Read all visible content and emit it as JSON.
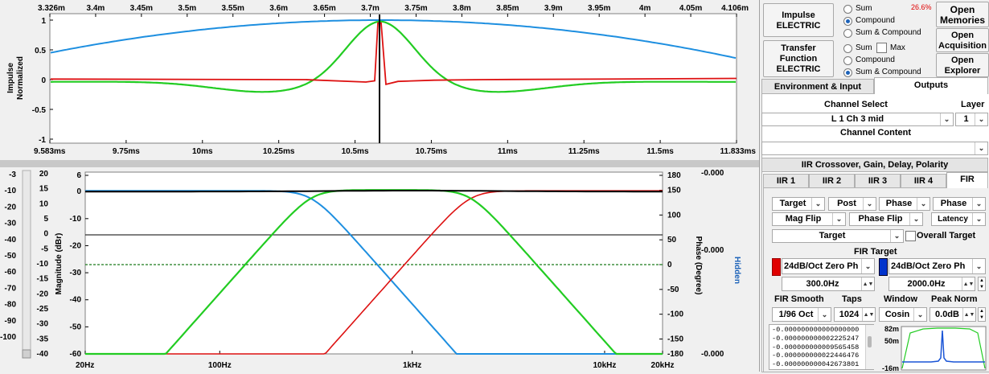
{
  "impulse": {
    "x_top_ticks": [
      "3.326m",
      "3.4m",
      "3.45m",
      "3.5m",
      "3.55m",
      "3.6m",
      "3.65m",
      "3.7m",
      "3.75m",
      "3.8m",
      "3.85m",
      "3.9m",
      "3.95m",
      "4m",
      "4.05m",
      "4.106m"
    ],
    "x_bottom_ticks": [
      "9.583ms",
      "9.75ms",
      "10ms",
      "10.25ms",
      "10.5ms",
      "10.75ms",
      "11ms",
      "11.25ms",
      "11.5ms",
      "11.833ms"
    ],
    "y_ticks": [
      "1",
      "0.5",
      "0",
      "-0.5",
      "-1"
    ],
    "ylabel_line1": "Impulse",
    "ylabel_line2": "Normalized"
  },
  "freq": {
    "left_scale_ticks": [
      "-3",
      "-10",
      "-20",
      "-30",
      "-40",
      "-50",
      "-60",
      "-70",
      "-80",
      "-90",
      "-100"
    ],
    "db2_ticks": [
      "20",
      "15",
      "10",
      "5",
      "0",
      "-5",
      "-10",
      "-15",
      "-20",
      "-25",
      "-30",
      "-35",
      "-40"
    ],
    "mag_ticks": [
      "6",
      "0",
      "-10",
      "-20",
      "-30",
      "-40",
      "-50",
      "-60"
    ],
    "phase_ticks": [
      "180",
      "150",
      "100",
      "50",
      "0",
      "-50",
      "-100",
      "-150",
      "-180"
    ],
    "right_values": [
      "-0.000",
      "-0.000",
      "-0.000"
    ],
    "x_ticks": [
      "20Hz",
      "100Hz",
      "1kHz",
      "10kHz",
      "20kHz"
    ],
    "ylabel": "Magnitude (dBr)",
    "phase_label": "Phase (Degree)",
    "hidden_label": "Hidden"
  },
  "panel": {
    "impulse_btn": [
      "Impulse",
      "ELECTRIC"
    ],
    "transfer_btn": [
      "Transfer",
      "Function",
      "ELECTRIC"
    ],
    "radio_top": [
      "Sum",
      "Compound",
      "Sum & Compound"
    ],
    "radio_bottom": [
      "Sum",
      "Compound",
      "Sum & Compound"
    ],
    "max_label": "Max",
    "percent": "26.6%",
    "open_memories": [
      "Open",
      "Memories"
    ],
    "open_acquisition": [
      "Open",
      "Acquisition"
    ],
    "open_explorer": [
      "Open",
      "Explorer"
    ],
    "tab_env": "Environment & Input",
    "tab_outputs": "Outputs",
    "channel_select_label": "Channel Select",
    "layer_label": "Layer",
    "channel_value": "L 1 Ch 3 mid",
    "layer_value": "1",
    "channel_content_label": "Channel Content",
    "iir_header": "IIR Crossover, Gain, Delay, Polarity",
    "iir_tabs": [
      "IIR 1",
      "IIR 2",
      "IIR 3",
      "IIR 4",
      "FIR"
    ],
    "row1": [
      "Target",
      "Post",
      "Phase",
      "Phase"
    ],
    "row2": [
      "Mag Flip",
      "Phase Flip",
      "Latency"
    ],
    "target_combo": "Target",
    "overall_target": "Overall Target",
    "fir_target_label": "FIR Target",
    "filter_left": "24dB/Oct Zero Ph",
    "filter_right": "24dB/Oct Zero Ph",
    "freq_left": "300.0Hz",
    "freq_right": "2000.0Hz",
    "row_labels": [
      "FIR Smooth",
      "Taps",
      "Window",
      "Peak Norm"
    ],
    "smooth_value": "1/96 Oct",
    "taps_value": "1024",
    "window_value": "Cosin",
    "peaknorm_value": "0.0dB",
    "coeffs": [
      "-0.000000000000000000",
      "-0.000000000002225247",
      "-0.000000000009565458",
      "-0.000000000022446476",
      "-0.000000000042673801"
    ],
    "mini_ticks": [
      "82m",
      "50m",
      "-16m"
    ]
  },
  "colors": {
    "blue": "#1e8fe0",
    "green": "#22cc22",
    "red": "#dd1111",
    "radio_blue": "#1c62b9",
    "swatch_red": "#e00000",
    "swatch_blue": "#0033cc"
  }
}
